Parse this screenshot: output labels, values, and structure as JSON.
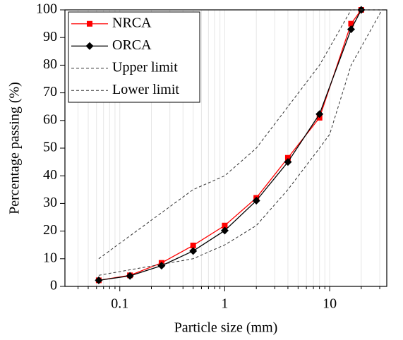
{
  "chart_data": {
    "type": "line",
    "xlabel": "Particle size (mm)",
    "ylabel": "Percentage passing (%)",
    "xscale": "log",
    "xlim": [
      0.03,
      35
    ],
    "ylim": [
      0,
      100
    ],
    "xticks": [
      0.1,
      1,
      10
    ],
    "xminorticks": [
      0.04,
      0.05,
      0.06,
      0.07,
      0.08,
      0.09,
      0.2,
      0.3,
      0.4,
      0.5,
      0.6,
      0.7,
      0.8,
      0.9,
      2,
      3,
      4,
      5,
      6,
      7,
      8,
      9,
      20,
      30
    ],
    "yticks": [
      0,
      10,
      20,
      30,
      40,
      50,
      60,
      70,
      80,
      90,
      100
    ],
    "grid": "x-minor",
    "legend": "upper left",
    "series": [
      {
        "name": "NRCA",
        "color": "#ff0000",
        "marker": "square",
        "dash": "solid",
        "x": [
          0.063,
          0.125,
          0.25,
          0.5,
          1,
          2,
          4,
          8,
          16,
          20
        ],
        "values": [
          2.2,
          4,
          8.5,
          14.8,
          22,
          32,
          46.5,
          61,
          95,
          100
        ]
      },
      {
        "name": "ORCA",
        "color": "#000000",
        "marker": "diamond",
        "dash": "solid",
        "x": [
          0.063,
          0.125,
          0.25,
          0.5,
          1,
          2,
          4,
          8,
          16,
          20
        ],
        "values": [
          2.2,
          3.8,
          7.5,
          12.8,
          20.2,
          31,
          45,
          62.3,
          93,
          100
        ]
      },
      {
        "name": "Upper limit",
        "color": "#333333",
        "marker": "none",
        "dash": "dashed",
        "x": [
          0.063,
          0.5,
          1,
          2,
          4,
          8,
          16,
          31.5
        ],
        "values": [
          10,
          35,
          40,
          50,
          65,
          80,
          100,
          100
        ]
      },
      {
        "name": "Lower limit",
        "color": "#333333",
        "marker": "none",
        "dash": "dashed",
        "x": [
          0.063,
          0.125,
          0.5,
          1,
          2,
          4,
          8,
          10,
          16,
          31.5
        ],
        "values": [
          4,
          6,
          10,
          15,
          22,
          35,
          50,
          55,
          80,
          100
        ]
      }
    ]
  }
}
